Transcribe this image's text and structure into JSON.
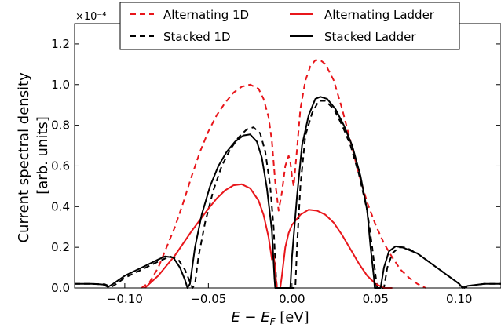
{
  "chart_data": {
    "type": "line",
    "title": "",
    "xlabel": "E − E_F [eV]",
    "xlabel_parts": {
      "e": "E",
      "minus": " − ",
      "ef": "E",
      "ef_sub": "F",
      "unit": " [eV]"
    },
    "ylabel_lines": [
      "Current spectral density",
      "[arb. units]"
    ],
    "y_multiplier": "×10⁻⁴",
    "xlim": [
      -0.13,
      0.125
    ],
    "ylim": [
      0,
      1.3
    ],
    "xticks": [
      -0.1,
      -0.05,
      0.0,
      0.05,
      0.1
    ],
    "xtick_labels": [
      "−0.10",
      "−0.05",
      "0.00",
      "0.05",
      "0.10"
    ],
    "yticks": [
      0.0,
      0.2,
      0.4,
      0.6,
      0.8,
      1.0,
      1.2
    ],
    "ytick_labels": [
      "0.0",
      "0.2",
      "0.4",
      "0.6",
      "0.8",
      "1.0",
      "1.2"
    ],
    "grid": false,
    "legend_position": "top-center",
    "series": [
      {
        "name": "Alternating 1D",
        "color": "#e8161b",
        "dash": "dashed",
        "points": [
          [
            -0.09,
            0.0
          ],
          [
            -0.085,
            0.03
          ],
          [
            -0.08,
            0.1
          ],
          [
            -0.075,
            0.2
          ],
          [
            -0.07,
            0.3
          ],
          [
            -0.065,
            0.42
          ],
          [
            -0.06,
            0.55
          ],
          [
            -0.055,
            0.67
          ],
          [
            -0.05,
            0.77
          ],
          [
            -0.045,
            0.85
          ],
          [
            -0.04,
            0.91
          ],
          [
            -0.035,
            0.96
          ],
          [
            -0.03,
            0.99
          ],
          [
            -0.025,
            1.0
          ],
          [
            -0.02,
            0.98
          ],
          [
            -0.017,
            0.93
          ],
          [
            -0.014,
            0.84
          ],
          [
            -0.012,
            0.72
          ],
          [
            -0.01,
            0.52
          ],
          [
            -0.008,
            0.38
          ],
          [
            -0.006,
            0.47
          ],
          [
            -0.004,
            0.6
          ],
          [
            -0.002,
            0.65
          ],
          [
            -0.001,
            0.62
          ],
          [
            0.0,
            0.55
          ],
          [
            0.001,
            0.5
          ],
          [
            0.003,
            0.68
          ],
          [
            0.005,
            0.88
          ],
          [
            0.008,
            1.02
          ],
          [
            0.011,
            1.09
          ],
          [
            0.014,
            1.12
          ],
          [
            0.017,
            1.12
          ],
          [
            0.02,
            1.1
          ],
          [
            0.025,
            1.02
          ],
          [
            0.03,
            0.88
          ],
          [
            0.035,
            0.72
          ],
          [
            0.04,
            0.56
          ],
          [
            0.045,
            0.42
          ],
          [
            0.05,
            0.31
          ],
          [
            0.055,
            0.22
          ],
          [
            0.06,
            0.15
          ],
          [
            0.065,
            0.09
          ],
          [
            0.07,
            0.05
          ],
          [
            0.075,
            0.02
          ],
          [
            0.08,
            0.0
          ]
        ]
      },
      {
        "name": "Stacked 1D",
        "color": "#000000",
        "dash": "dashed",
        "points": [
          [
            -0.13,
            0.02
          ],
          [
            -0.12,
            0.02
          ],
          [
            -0.112,
            0.018
          ],
          [
            -0.108,
            0.005
          ],
          [
            -0.105,
            0.02
          ],
          [
            -0.1,
            0.05
          ],
          [
            -0.09,
            0.09
          ],
          [
            -0.08,
            0.13
          ],
          [
            -0.073,
            0.155
          ],
          [
            -0.068,
            0.14
          ],
          [
            -0.064,
            0.09
          ],
          [
            -0.061,
            0.03
          ],
          [
            -0.0595,
            0.0
          ],
          [
            -0.058,
            0.02
          ],
          [
            -0.056,
            0.15
          ],
          [
            -0.052,
            0.32
          ],
          [
            -0.047,
            0.48
          ],
          [
            -0.042,
            0.6
          ],
          [
            -0.037,
            0.68
          ],
          [
            -0.032,
            0.74
          ],
          [
            -0.027,
            0.78
          ],
          [
            -0.023,
            0.79
          ],
          [
            -0.019,
            0.76
          ],
          [
            -0.016,
            0.67
          ],
          [
            -0.013,
            0.5
          ],
          [
            -0.011,
            0.3
          ],
          [
            -0.0095,
            0.05
          ],
          [
            -0.009,
            0.0
          ],
          [
            0.002,
            0.0
          ],
          [
            0.003,
            0.2
          ],
          [
            0.005,
            0.5
          ],
          [
            0.008,
            0.75
          ],
          [
            0.012,
            0.86
          ],
          [
            0.016,
            0.92
          ],
          [
            0.02,
            0.92
          ],
          [
            0.025,
            0.88
          ],
          [
            0.03,
            0.8
          ],
          [
            0.035,
            0.7
          ],
          [
            0.04,
            0.56
          ],
          [
            0.045,
            0.38
          ],
          [
            0.048,
            0.2
          ],
          [
            0.05,
            0.06
          ],
          [
            0.051,
            0.0
          ],
          [
            0.055,
            0.0
          ],
          [
            0.057,
            0.1
          ],
          [
            0.06,
            0.17
          ],
          [
            0.064,
            0.2
          ],
          [
            0.068,
            0.2
          ],
          [
            0.075,
            0.17
          ],
          [
            0.085,
            0.11
          ],
          [
            0.095,
            0.05
          ],
          [
            0.1,
            0.02
          ],
          [
            0.103,
            0.0
          ],
          [
            0.106,
            0.01
          ],
          [
            0.115,
            0.02
          ],
          [
            0.125,
            0.02
          ]
        ]
      },
      {
        "name": "Alternating Ladder",
        "color": "#e8161b",
        "dash": "solid",
        "points": [
          [
            -0.088,
            0.0
          ],
          [
            -0.08,
            0.06
          ],
          [
            -0.07,
            0.16
          ],
          [
            -0.06,
            0.28
          ],
          [
            -0.05,
            0.39
          ],
          [
            -0.045,
            0.44
          ],
          [
            -0.04,
            0.48
          ],
          [
            -0.035,
            0.505
          ],
          [
            -0.03,
            0.51
          ],
          [
            -0.025,
            0.49
          ],
          [
            -0.02,
            0.43
          ],
          [
            -0.017,
            0.36
          ],
          [
            -0.014,
            0.25
          ],
          [
            -0.012,
            0.14
          ],
          [
            -0.011,
            0.16
          ],
          [
            -0.0105,
            0.13
          ],
          [
            -0.0098,
            0.06
          ],
          [
            -0.009,
            0.0
          ],
          [
            -0.007,
            0.0
          ],
          [
            -0.006,
            0.06
          ],
          [
            -0.004,
            0.2
          ],
          [
            -0.002,
            0.27
          ],
          [
            0.0,
            0.31
          ],
          [
            0.005,
            0.36
          ],
          [
            0.01,
            0.385
          ],
          [
            0.015,
            0.38
          ],
          [
            0.02,
            0.36
          ],
          [
            0.025,
            0.32
          ],
          [
            0.03,
            0.26
          ],
          [
            0.035,
            0.19
          ],
          [
            0.04,
            0.12
          ],
          [
            0.045,
            0.06
          ],
          [
            0.05,
            0.02
          ],
          [
            0.055,
            0.0
          ],
          [
            0.06,
            0.0
          ]
        ]
      },
      {
        "name": "Stacked Ladder",
        "color": "#000000",
        "dash": "solid",
        "points": [
          [
            -0.13,
            0.02
          ],
          [
            -0.12,
            0.02
          ],
          [
            -0.113,
            0.017
          ],
          [
            -0.11,
            0.005
          ],
          [
            -0.107,
            0.02
          ],
          [
            -0.1,
            0.06
          ],
          [
            -0.09,
            0.1
          ],
          [
            -0.08,
            0.14
          ],
          [
            -0.076,
            0.155
          ],
          [
            -0.071,
            0.15
          ],
          [
            -0.067,
            0.1
          ],
          [
            -0.064,
            0.04
          ],
          [
            -0.0625,
            0.0
          ],
          [
            -0.061,
            0.02
          ],
          [
            -0.058,
            0.2
          ],
          [
            -0.054,
            0.36
          ],
          [
            -0.049,
            0.5
          ],
          [
            -0.044,
            0.6
          ],
          [
            -0.039,
            0.67
          ],
          [
            -0.034,
            0.72
          ],
          [
            -0.029,
            0.75
          ],
          [
            -0.025,
            0.755
          ],
          [
            -0.021,
            0.72
          ],
          [
            -0.018,
            0.64
          ],
          [
            -0.015,
            0.49
          ],
          [
            -0.012,
            0.28
          ],
          [
            -0.0105,
            0.05
          ],
          [
            -0.01,
            0.0
          ],
          [
            -0.001,
            0.0
          ],
          [
            0.0,
            0.15
          ],
          [
            0.003,
            0.45
          ],
          [
            0.006,
            0.7
          ],
          [
            0.01,
            0.85
          ],
          [
            0.014,
            0.93
          ],
          [
            0.017,
            0.94
          ],
          [
            0.021,
            0.93
          ],
          [
            0.026,
            0.88
          ],
          [
            0.031,
            0.8
          ],
          [
            0.036,
            0.7
          ],
          [
            0.041,
            0.55
          ],
          [
            0.045,
            0.38
          ],
          [
            0.047,
            0.2
          ],
          [
            0.049,
            0.05
          ],
          [
            0.0495,
            0.0
          ],
          [
            0.053,
            0.0
          ],
          [
            0.055,
            0.1
          ],
          [
            0.058,
            0.18
          ],
          [
            0.062,
            0.205
          ],
          [
            0.066,
            0.2
          ],
          [
            0.075,
            0.17
          ],
          [
            0.085,
            0.11
          ],
          [
            0.095,
            0.05
          ],
          [
            0.1,
            0.02
          ],
          [
            0.102,
            0.0
          ],
          [
            0.105,
            0.01
          ],
          [
            0.115,
            0.02
          ],
          [
            0.125,
            0.02
          ]
        ]
      }
    ]
  }
}
